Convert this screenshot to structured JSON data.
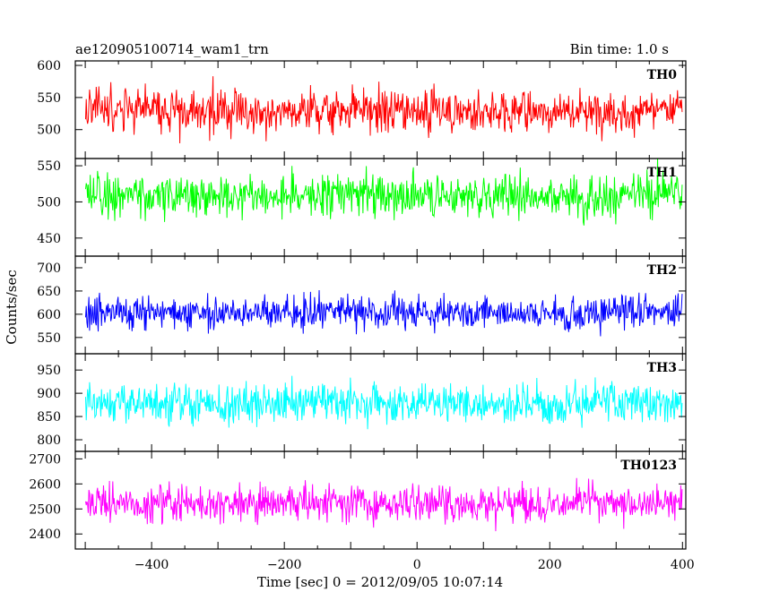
{
  "header": {
    "title": "ae120905100714_wam1_trn",
    "bin_time": "Bin time: 1.0 s"
  },
  "chart_data": {
    "type": "line",
    "xlabel": "Time [sec] 0 = 2012/09/05 10:07:14",
    "ylabel": "Counts/sec",
    "xlim": [
      -515,
      405
    ],
    "x_ticks": [
      -400,
      -200,
      0,
      200,
      400
    ],
    "x_tick_labels": [
      "−400",
      "−200",
      "0",
      "200",
      "400"
    ],
    "x_start": -500,
    "x_end": 400,
    "bin_time": 1.0,
    "panels": [
      {
        "name": "TH0",
        "color": "#ff0000",
        "mean": 530,
        "spread": 28,
        "ylim": [
          455,
          607
        ],
        "ticks": [
          500,
          550,
          600
        ]
      },
      {
        "name": "TH1",
        "color": "#00ff00",
        "mean": 510,
        "spread": 25,
        "ylim": [
          425,
          560
        ],
        "ticks": [
          450,
          500,
          550
        ]
      },
      {
        "name": "TH2",
        "color": "#0000ff",
        "mean": 605,
        "spread": 30,
        "ylim": [
          515,
          725
        ],
        "ticks": [
          550,
          600,
          650,
          700
        ]
      },
      {
        "name": "TH3",
        "color": "#00ffff",
        "mean": 880,
        "spread": 35,
        "ylim": [
          775,
          985
        ],
        "ticks": [
          800,
          850,
          900,
          950
        ]
      },
      {
        "name": "TH0123",
        "color": "#ff00ff",
        "mean": 2525,
        "spread": 60,
        "ylim": [
          2340,
          2730
        ],
        "ticks": [
          2400,
          2500,
          2600,
          2700
        ]
      }
    ]
  }
}
